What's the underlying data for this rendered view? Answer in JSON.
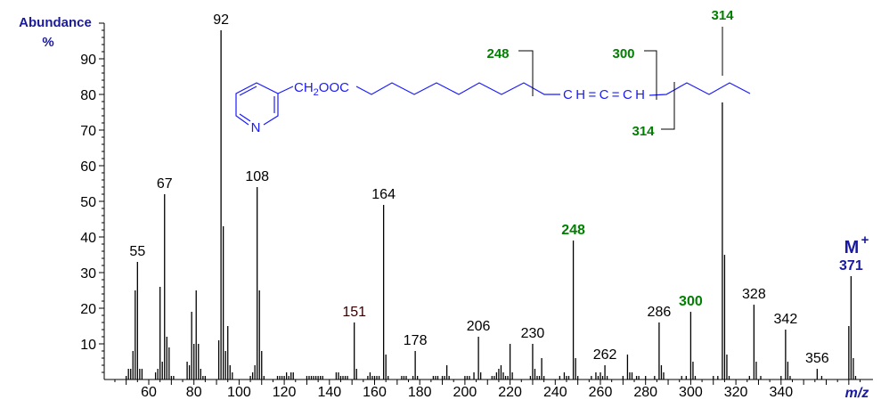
{
  "chart_data": {
    "type": "bar",
    "title": "",
    "ylabel_line1": "Abundance",
    "ylabel_line2": "%",
    "xlabel": "m/z",
    "xlim": [
      40,
      380
    ],
    "ylim": [
      0,
      100
    ],
    "x_ticks": [
      60,
      80,
      100,
      120,
      140,
      160,
      180,
      200,
      220,
      240,
      260,
      280,
      300,
      320,
      340
    ],
    "y_ticks": [
      10,
      20,
      30,
      40,
      50,
      60,
      70,
      80,
      90
    ],
    "grid": false,
    "peaks": [
      [
        50,
        1
      ],
      [
        51,
        3
      ],
      [
        52,
        3
      ],
      [
        53,
        8
      ],
      [
        54,
        25
      ],
      [
        55,
        33
      ],
      [
        56,
        3
      ],
      [
        57,
        3
      ],
      [
        63,
        2
      ],
      [
        64,
        3
      ],
      [
        65,
        26
      ],
      [
        66,
        5
      ],
      [
        67,
        52
      ],
      [
        68,
        12
      ],
      [
        69,
        9
      ],
      [
        70,
        1
      ],
      [
        71,
        1
      ],
      [
        77,
        5
      ],
      [
        78,
        4
      ],
      [
        79,
        19
      ],
      [
        80,
        10
      ],
      [
        81,
        25
      ],
      [
        82,
        10
      ],
      [
        83,
        3
      ],
      [
        84,
        1
      ],
      [
        85,
        1
      ],
      [
        91,
        11
      ],
      [
        92,
        98
      ],
      [
        93,
        43
      ],
      [
        94,
        8
      ],
      [
        95,
        15
      ],
      [
        96,
        4
      ],
      [
        97,
        2
      ],
      [
        105,
        1
      ],
      [
        106,
        2
      ],
      [
        107,
        4
      ],
      [
        108,
        54
      ],
      [
        109,
        25
      ],
      [
        110,
        8
      ],
      [
        111,
        1
      ],
      [
        117,
        1
      ],
      [
        118,
        1
      ],
      [
        119,
        1
      ],
      [
        120,
        1
      ],
      [
        121,
        2
      ],
      [
        122,
        1
      ],
      [
        123,
        2
      ],
      [
        124,
        2
      ],
      [
        130,
        1
      ],
      [
        131,
        1
      ],
      [
        132,
        1
      ],
      [
        133,
        1
      ],
      [
        134,
        1
      ],
      [
        135,
        1
      ],
      [
        136,
        1
      ],
      [
        137,
        1
      ],
      [
        143,
        2
      ],
      [
        144,
        2
      ],
      [
        145,
        1
      ],
      [
        146,
        1
      ],
      [
        147,
        1
      ],
      [
        148,
        1
      ],
      [
        151,
        16
      ],
      [
        152,
        3
      ],
      [
        157,
        1
      ],
      [
        158,
        2
      ],
      [
        159,
        1
      ],
      [
        160,
        1
      ],
      [
        161,
        1
      ],
      [
        162,
        1
      ],
      [
        164,
        49
      ],
      [
        165,
        7
      ],
      [
        166,
        1
      ],
      [
        172,
        1
      ],
      [
        173,
        1
      ],
      [
        174,
        1
      ],
      [
        177,
        1
      ],
      [
        178,
        8
      ],
      [
        179,
        1
      ],
      [
        186,
        1
      ],
      [
        187,
        1
      ],
      [
        188,
        1
      ],
      [
        190,
        1
      ],
      [
        191,
        1
      ],
      [
        192,
        4
      ],
      [
        193,
        1
      ],
      [
        200,
        1
      ],
      [
        201,
        1
      ],
      [
        202,
        1
      ],
      [
        204,
        2
      ],
      [
        206,
        12
      ],
      [
        207,
        2
      ],
      [
        212,
        1
      ],
      [
        213,
        1
      ],
      [
        214,
        2
      ],
      [
        215,
        3
      ],
      [
        216,
        4
      ],
      [
        217,
        2
      ],
      [
        218,
        1
      ],
      [
        219,
        1
      ],
      [
        220,
        10
      ],
      [
        221,
        2
      ],
      [
        229,
        1
      ],
      [
        230,
        10
      ],
      [
        231,
        3
      ],
      [
        232,
        1
      ],
      [
        233,
        1
      ],
      [
        234,
        6
      ],
      [
        235,
        1
      ],
      [
        242,
        1
      ],
      [
        244,
        2
      ],
      [
        245,
        1
      ],
      [
        246,
        1
      ],
      [
        248,
        39
      ],
      [
        249,
        6
      ],
      [
        250,
        1
      ],
      [
        256,
        1
      ],
      [
        258,
        2
      ],
      [
        259,
        1
      ],
      [
        260,
        2
      ],
      [
        261,
        1
      ],
      [
        262,
        4
      ],
      [
        263,
        1
      ],
      [
        270,
        1
      ],
      [
        272,
        7
      ],
      [
        273,
        2
      ],
      [
        274,
        2
      ],
      [
        276,
        1
      ],
      [
        277,
        1
      ],
      [
        280,
        1
      ],
      [
        284,
        1
      ],
      [
        286,
        16
      ],
      [
        287,
        4
      ],
      [
        288,
        2
      ],
      [
        296,
        1
      ],
      [
        298,
        1
      ],
      [
        300,
        19
      ],
      [
        301,
        5
      ],
      [
        302,
        1
      ],
      [
        310,
        1
      ],
      [
        312,
        1
      ],
      [
        314,
        78
      ],
      [
        315,
        35
      ],
      [
        316,
        7
      ],
      [
        317,
        1
      ],
      [
        326,
        1
      ],
      [
        328,
        21
      ],
      [
        329,
        5
      ],
      [
        331,
        1
      ],
      [
        340,
        1
      ],
      [
        342,
        14
      ],
      [
        343,
        5
      ],
      [
        344,
        1
      ],
      [
        356,
        3
      ],
      [
        358,
        1
      ],
      [
        370,
        15
      ],
      [
        371,
        29
      ],
      [
        372,
        6
      ],
      [
        373,
        1
      ]
    ],
    "peak_labels": [
      {
        "mz": 55,
        "text": "55",
        "color": "#000000"
      },
      {
        "mz": 67,
        "text": "67",
        "color": "#000000"
      },
      {
        "mz": 92,
        "text": "92",
        "color": "#000000"
      },
      {
        "mz": 108,
        "text": "108",
        "color": "#000000"
      },
      {
        "mz": 151,
        "text": "151",
        "color": "#330000"
      },
      {
        "mz": 164,
        "text": "164",
        "color": "#000000"
      },
      {
        "mz": 178,
        "text": "178",
        "color": "#000000"
      },
      {
        "mz": 206,
        "text": "206",
        "color": "#000000"
      },
      {
        "mz": 230,
        "text": "230",
        "color": "#000000"
      },
      {
        "mz": 248,
        "text": "248",
        "color": "#008000"
      },
      {
        "mz": 262,
        "text": "262",
        "color": "#000000"
      },
      {
        "mz": 286,
        "text": "286",
        "color": "#000000"
      },
      {
        "mz": 300,
        "text": "300",
        "color": "#008000"
      },
      {
        "mz": 328,
        "text": "328",
        "color": "#000000"
      },
      {
        "mz": 342,
        "text": "342",
        "color": "#000000"
      },
      {
        "mz": 356,
        "text": "356",
        "color": "#000000"
      },
      {
        "mz": 371,
        "text": "371",
        "color": "#1a1aa0"
      }
    ],
    "molecular_ion": {
      "label": "M",
      "charge": "+",
      "mz": 371,
      "color": "#1a1aa0"
    }
  },
  "structure": {
    "ring_atom": "N",
    "ester_group": "CH2OOC",
    "ester_sub": "2",
    "allene_group": "CH=C=CH",
    "fragments": {
      "f248": "248",
      "f300": "300",
      "f314_low": "314",
      "f314_top": "314"
    },
    "structure_color": "#1a1aff",
    "fragment_color": "#008000"
  }
}
